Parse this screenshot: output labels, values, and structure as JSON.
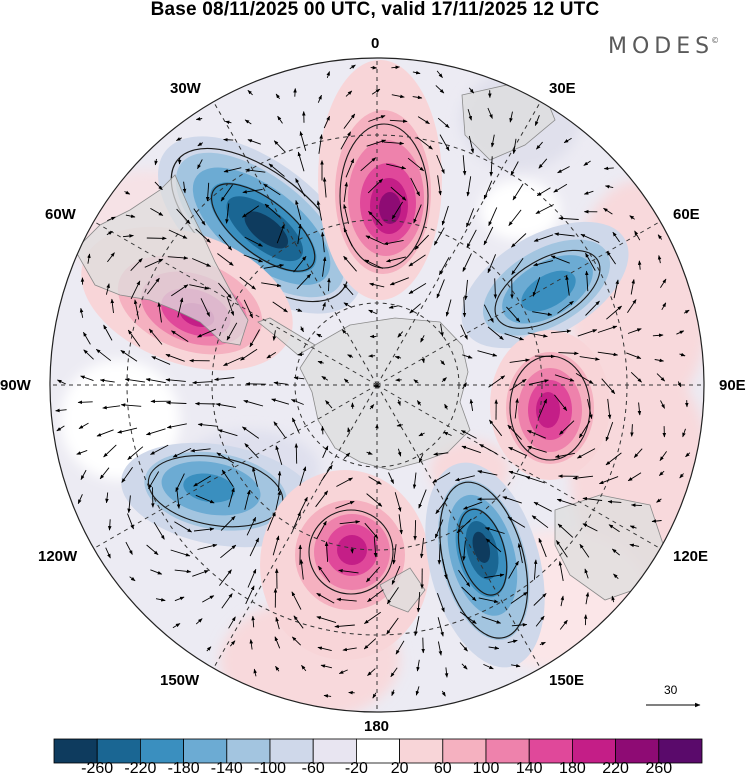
{
  "title": "Base 08/11/2025 00 UTC, valid 17/11/2025 12 UTC",
  "brand": "MODES",
  "brand_mark": "©",
  "longitude_labels": {
    "top": "0",
    "top_left": "30W",
    "top_right": "30E",
    "upper_left": "60W",
    "upper_right": "60E",
    "left": "90W",
    "right": "90E",
    "lower_left": "120W",
    "lower_right": "120E",
    "bottom_left": "150W",
    "bottom_right": "150E",
    "bottom": "180"
  },
  "vector_scale": {
    "label": "30",
    "arrow_icon": "right-arrow-icon"
  },
  "colorbar": {
    "labels": [
      "-260",
      "-220",
      "-180",
      "-140",
      "-100",
      "-60",
      "-20",
      "20",
      "60",
      "100",
      "140",
      "180",
      "220",
      "260"
    ],
    "colors": [
      "#0e3b5e",
      "#1a6693",
      "#3a8fbf",
      "#6cabd3",
      "#a3c5e0",
      "#cfd8ea",
      "#e8e5f1",
      "#ffffff",
      "#f8d5d8",
      "#f5b1c0",
      "#ee82ac",
      "#e0489a",
      "#c41e87",
      "#8e0b74",
      "#5a0a6b"
    ]
  },
  "map_colors": {
    "land": "#dedede",
    "land_edge": "#8a8a8a",
    "grid": "#333333",
    "contour": "#1a1a1a",
    "arrow": "#000000"
  },
  "anomalies": [
    {
      "name": "blob-neg-30w",
      "value": -260
    },
    {
      "name": "blob-pos-0",
      "value": 260
    },
    {
      "name": "blob-pos-60w",
      "value": 200
    },
    {
      "name": "blob-neg-60e",
      "value": -180
    },
    {
      "name": "blob-pos-90e",
      "value": 220
    },
    {
      "name": "blob-neg-120w",
      "value": -160
    },
    {
      "name": "blob-pos-160w",
      "value": 220
    },
    {
      "name": "blob-neg-140e",
      "value": -250
    }
  ]
}
